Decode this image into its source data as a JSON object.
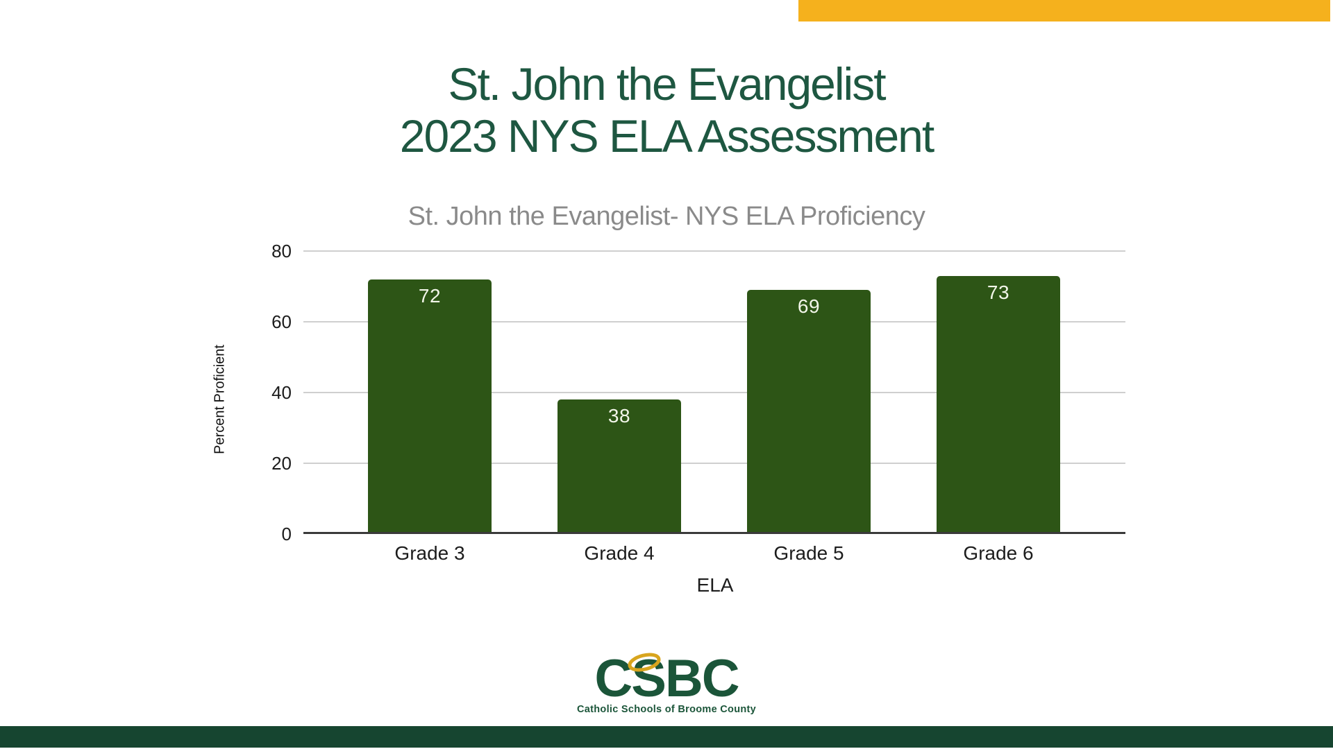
{
  "slide": {
    "title": "St. John the Evangelist\n2023 NYS ELA Assessment",
    "colors": {
      "title_green": "#1E5741",
      "gold_accent": "#F5B11D",
      "bottom_bar_green": "#164530",
      "logo_green": "#1B5539",
      "halo_gold": "#D8A51E",
      "chart_title_gray": "#8A8A8A"
    }
  },
  "chart_data": {
    "type": "bar",
    "title": "St. John the Evangelist- NYS ELA Proficiency",
    "categories": [
      "Grade 3",
      "Grade 4",
      "Grade 5",
      "Grade 6"
    ],
    "values": [
      72,
      38,
      69,
      73
    ],
    "xlabel": "ELA",
    "ylabel": "Percent Proficient",
    "ylim": [
      0,
      80
    ],
    "yticks": [
      0,
      20,
      40,
      60,
      80
    ],
    "grid": true,
    "legend_position": "none",
    "bar_color": "#2D5516",
    "value_label_color": "#F2F6E9",
    "gridline_color": "#CFCFCF",
    "axis_line_color": "#3A3A3A"
  },
  "footer": {
    "logo_text": "CSBC",
    "logo_tagline": "Catholic Schools of Broome County"
  }
}
